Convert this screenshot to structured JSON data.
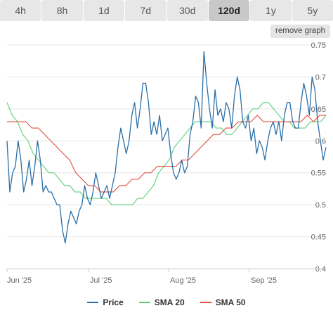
{
  "tabs": [
    {
      "label": "4h",
      "active": false
    },
    {
      "label": "8h",
      "active": false
    },
    {
      "label": "1d",
      "active": false
    },
    {
      "label": "7d",
      "active": false
    },
    {
      "label": "30d",
      "active": false
    },
    {
      "label": "120d",
      "active": true
    },
    {
      "label": "1y",
      "active": false
    },
    {
      "label": "5y",
      "active": false
    }
  ],
  "remove_graph_label": "remove graph",
  "colors": {
    "price": "#2a6fa8",
    "sma20": "#5ccf7c",
    "sma50": "#e2503e",
    "grid": "#e6e6e6",
    "tab_bg": "#e7e7e7",
    "tab_active_bg": "#c8c8c8"
  },
  "chart_data": {
    "type": "line",
    "x_ticks": [
      "Jun '25",
      "Jul '25",
      "Aug '25",
      "Sep '25"
    ],
    "y_ticks": [
      "0.4",
      "0.45",
      "0.5",
      "0.55",
      "0.6",
      "0.65",
      "0.7",
      "0.75"
    ],
    "ylim": [
      0.4,
      0.75
    ],
    "grid": true,
    "legend_position": "bottom",
    "series": [
      {
        "name": "Price",
        "values": [
          0.6,
          0.52,
          0.55,
          0.56,
          0.6,
          0.57,
          0.52,
          0.54,
          0.57,
          0.53,
          0.56,
          0.6,
          0.57,
          0.52,
          0.53,
          0.52,
          0.52,
          0.51,
          0.5,
          0.5,
          0.46,
          0.44,
          0.47,
          0.49,
          0.48,
          0.47,
          0.49,
          0.5,
          0.53,
          0.51,
          0.5,
          0.52,
          0.55,
          0.53,
          0.51,
          0.52,
          0.53,
          0.51,
          0.53,
          0.55,
          0.59,
          0.62,
          0.6,
          0.58,
          0.6,
          0.64,
          0.66,
          0.62,
          0.65,
          0.69,
          0.69,
          0.66,
          0.61,
          0.63,
          0.61,
          0.64,
          0.6,
          0.61,
          0.62,
          0.58,
          0.55,
          0.54,
          0.55,
          0.57,
          0.55,
          0.56,
          0.61,
          0.63,
          0.67,
          0.66,
          0.62,
          0.74,
          0.69,
          0.65,
          0.62,
          0.68,
          0.64,
          0.65,
          0.63,
          0.66,
          0.65,
          0.62,
          0.67,
          0.7,
          0.68,
          0.63,
          0.62,
          0.64,
          0.6,
          0.62,
          0.58,
          0.6,
          0.59,
          0.57,
          0.6,
          0.62,
          0.63,
          0.61,
          0.63,
          0.6,
          0.64,
          0.66,
          0.66,
          0.63,
          0.62,
          0.62,
          0.66,
          0.69,
          0.67,
          0.64,
          0.7,
          0.68,
          0.63,
          0.6,
          0.57,
          0.59
        ]
      },
      {
        "name": "SMA 20",
        "values": [
          0.66,
          0.64,
          0.63,
          0.61,
          0.6,
          0.58,
          0.57,
          0.56,
          0.55,
          0.55,
          0.54,
          0.53,
          0.53,
          0.52,
          0.52,
          0.51,
          0.51,
          0.51,
          0.51,
          0.51,
          0.5,
          0.5,
          0.5,
          0.5,
          0.5,
          0.51,
          0.51,
          0.52,
          0.53,
          0.55,
          0.56,
          0.57,
          0.59,
          0.6,
          0.61,
          0.62,
          0.63,
          0.63,
          0.63,
          0.63,
          0.62,
          0.62,
          0.61,
          0.61,
          0.62,
          0.63,
          0.64,
          0.65,
          0.65,
          0.66,
          0.66,
          0.65,
          0.64,
          0.63,
          0.63,
          0.62,
          0.62,
          0.62,
          0.63,
          0.63,
          0.63,
          0.64
        ]
      },
      {
        "name": "SMA 50",
        "values": [
          0.63,
          0.63,
          0.63,
          0.63,
          0.62,
          0.62,
          0.61,
          0.6,
          0.59,
          0.58,
          0.57,
          0.55,
          0.54,
          0.53,
          0.53,
          0.52,
          0.52,
          0.52,
          0.53,
          0.53,
          0.54,
          0.54,
          0.55,
          0.55,
          0.56,
          0.56,
          0.56,
          0.56,
          0.57,
          0.57,
          0.58,
          0.59,
          0.6,
          0.61,
          0.61,
          0.62,
          0.62,
          0.63,
          0.63,
          0.63,
          0.64,
          0.63,
          0.63,
          0.63,
          0.63,
          0.63,
          0.63,
          0.63,
          0.64,
          0.63,
          0.64,
          0.64
        ]
      }
    ]
  }
}
